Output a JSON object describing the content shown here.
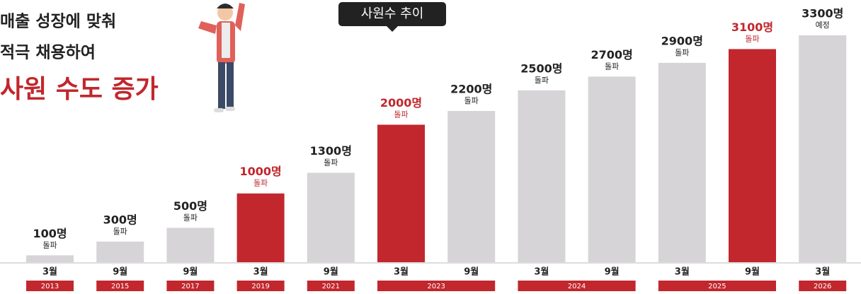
{
  "headline": [
    "매출 성장에 맞춰",
    "적극 채용하여",
    "사원 수도 증가"
  ],
  "chart_data": {
    "type": "bar",
    "title": "사원수 추이",
    "categories": [
      "3월",
      "9월",
      "9월",
      "3월",
      "9월",
      "3월",
      "9월",
      "3월",
      "9월",
      "3월",
      "9월",
      "3월"
    ],
    "years": [
      "2013",
      "2015",
      "2017",
      "2019",
      "2021",
      "2023",
      null,
      "2024",
      null,
      "2025",
      null,
      "2026"
    ],
    "values": [
      100,
      300,
      500,
      1000,
      1300,
      2000,
      2200,
      2500,
      2700,
      2900,
      3100,
      3300
    ],
    "value_labels": [
      "100명",
      "300명",
      "500명",
      "1000명",
      "1300명",
      "2000명",
      "2200명",
      "2500명",
      "2700명",
      "2900명",
      "3100명",
      "3300명"
    ],
    "notes": [
      "돌파",
      "돌파",
      "돌파",
      "돌파",
      "돌파",
      "돌파",
      "돌파",
      "돌파",
      "돌파",
      "돌파",
      "돌파",
      "예정"
    ],
    "colors": [
      "#d6d4d7",
      "#d6d4d7",
      "#d6d4d7",
      "#c1272d",
      "#d6d4d7",
      "#c1272d",
      "#d6d4d7",
      "#d6d4d7",
      "#d6d4d7",
      "#d6d4d7",
      "#c1272d",
      "#d6d4d7"
    ],
    "ylim": [
      0,
      3300
    ]
  }
}
